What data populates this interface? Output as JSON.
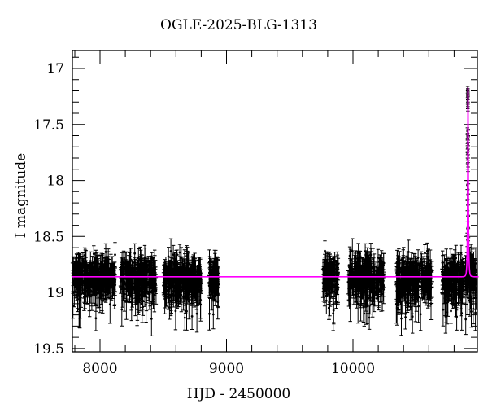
{
  "figure": {
    "title": "OGLE-2025-BLG-1313",
    "background_color": "#ffffff"
  },
  "chart_data": {
    "type": "scatter",
    "title": "OGLE-2025-BLG-1313",
    "xlabel": "HJD - 2450000",
    "ylabel": "I magnitude",
    "xlim": [
      7781,
      10984
    ],
    "ylim": [
      19.53,
      16.84
    ],
    "y_axis_inverted": true,
    "grid": false,
    "legend": null,
    "x_major_ticks": [
      8000,
      9000,
      10000
    ],
    "x_minor_step": 200,
    "y_major_ticks": [
      17,
      17.5,
      18,
      18.5,
      19,
      19.5
    ],
    "y_minor_step": 0.1,
    "colors": {
      "points": "#000000",
      "model": "#ff00ff",
      "frame": "#000000",
      "background": "#ffffff"
    },
    "baseline_mag": 18.86,
    "model": {
      "type": "paczynski-microlensing",
      "t0": 10910,
      "tE": 6,
      "u0": 0.215,
      "baseline_mag": 18.86,
      "peak_mag": 17.17
    },
    "seasons": [
      {
        "t_start": 7781,
        "t_end": 8122,
        "n": 300,
        "mean_mag": 18.87,
        "sigma": 0.085,
        "seed": 3
      },
      {
        "t_start": 8160,
        "t_end": 8443,
        "n": 260,
        "mean_mag": 18.87,
        "sigma": 0.085,
        "seed": 7
      },
      {
        "t_start": 8501,
        "t_end": 8803,
        "n": 275,
        "mean_mag": 18.87,
        "sigma": 0.085,
        "seed": 13
      },
      {
        "t_start": 8861,
        "t_end": 8938,
        "n": 80,
        "mean_mag": 18.87,
        "sigma": 0.08,
        "seed": 21
      },
      {
        "t_start": 9762,
        "t_end": 9884,
        "n": 115,
        "mean_mag": 18.87,
        "sigma": 0.09,
        "seed": 31
      },
      {
        "t_start": 9961,
        "t_end": 10244,
        "n": 260,
        "mean_mag": 18.87,
        "sigma": 0.09,
        "seed": 42
      },
      {
        "t_start": 10341,
        "t_end": 10624,
        "n": 260,
        "mean_mag": 18.87,
        "sigma": 0.085,
        "seed": 55
      },
      {
        "t_start": 10701,
        "t_end": 10975,
        "n": 275,
        "mean_mag": 18.87,
        "sigma": 0.085,
        "seed": 68
      }
    ],
    "event_points": [
      [
        10907.2,
        17.18,
        0.02
      ],
      [
        10908.8,
        17.2,
        0.02
      ],
      [
        10907.8,
        17.21,
        0.02
      ],
      [
        10909.3,
        17.23,
        0.02
      ],
      [
        10906.9,
        17.24,
        0.02
      ],
      [
        10908.3,
        17.26,
        0.02
      ],
      [
        10909.8,
        17.27,
        0.03
      ],
      [
        10907.4,
        17.29,
        0.03
      ],
      [
        10908.9,
        17.31,
        0.03
      ],
      [
        10907.9,
        17.33,
        0.03
      ],
      [
        10909.4,
        17.35,
        0.03
      ],
      [
        10905.4,
        17.56,
        0.03
      ],
      [
        10911.9,
        17.58,
        0.03
      ],
      [
        10905.9,
        17.61,
        0.03
      ],
      [
        10911.4,
        17.63,
        0.03
      ],
      [
        10906.4,
        17.66,
        0.03
      ],
      [
        10910.9,
        17.68,
        0.04
      ],
      [
        10905.6,
        17.71,
        0.04
      ],
      [
        10911.6,
        17.73,
        0.04
      ],
      [
        10906.1,
        17.76,
        0.04
      ],
      [
        10911.1,
        17.78,
        0.04
      ],
      [
        10906.6,
        17.81,
        0.04
      ],
      [
        10910.6,
        17.84,
        0.04
      ],
      [
        10907.1,
        17.86,
        0.04
      ],
      [
        10910.1,
        17.88,
        0.04
      ],
      [
        10904.4,
        18.04,
        0.04
      ],
      [
        10912.9,
        18.08,
        0.05
      ],
      [
        10904.9,
        18.13,
        0.05
      ],
      [
        10912.4,
        18.17,
        0.05
      ],
      [
        10905.2,
        18.22,
        0.05
      ],
      [
        10912.1,
        18.27,
        0.05
      ],
      [
        10904.6,
        18.32,
        0.05
      ],
      [
        10912.6,
        18.37,
        0.06
      ],
      [
        10905.0,
        18.43,
        0.06
      ],
      [
        10911.8,
        18.48,
        0.06
      ],
      [
        10904.2,
        18.53,
        0.06
      ],
      [
        10913.1,
        18.58,
        0.07
      ]
    ]
  }
}
